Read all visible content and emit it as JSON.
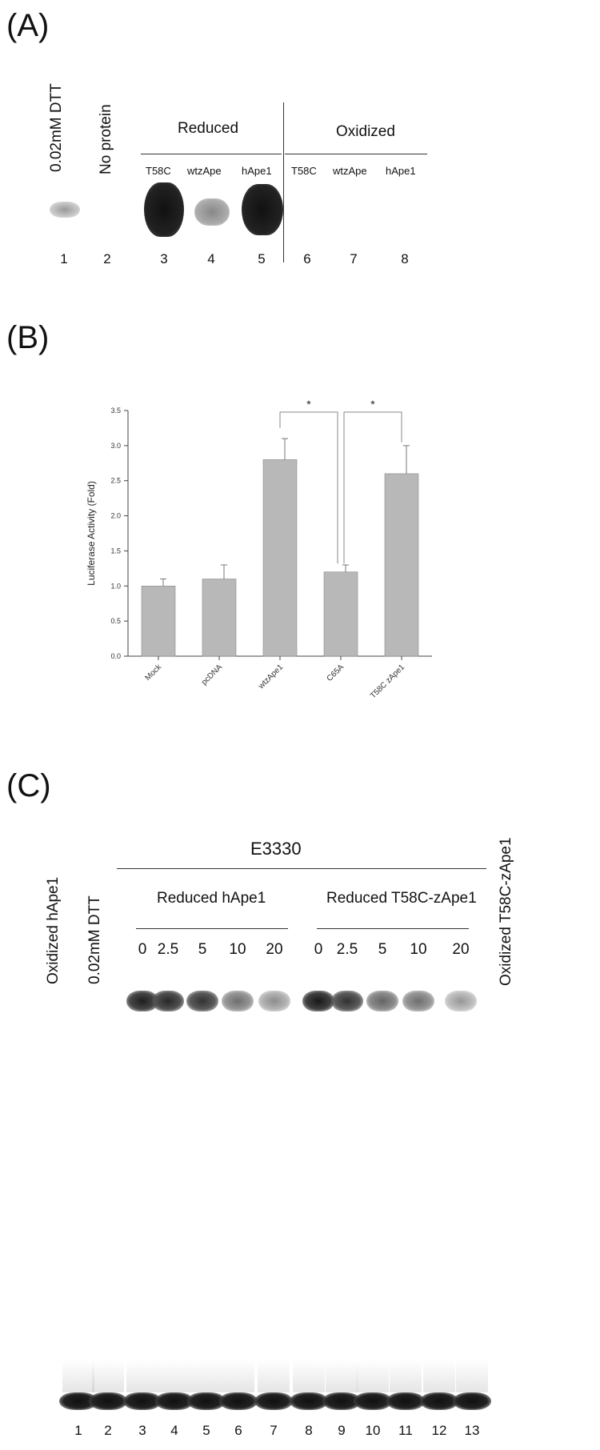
{
  "panelA": {
    "label": "(A)",
    "lane_headers": {
      "dtt": "0.02mM DTT",
      "no_protein": "No protein"
    },
    "groups": {
      "reduced": "Reduced",
      "oxidized": "Oxidized"
    },
    "sub_labels": [
      "T58C",
      "wtzApe",
      "hApe1",
      "T58C",
      "wtzApe",
      "hApe1"
    ],
    "lanes": [
      "1",
      "2",
      "3",
      "4",
      "5",
      "6",
      "7",
      "8"
    ]
  },
  "panelB": {
    "label": "(B)",
    "significance": [
      "*",
      "*"
    ]
  },
  "chart_data": {
    "type": "bar",
    "categories": [
      "Mock",
      "pcDNA",
      "wtzApe1",
      "C65A",
      "T58C zApe1"
    ],
    "values": [
      1.0,
      1.1,
      2.8,
      1.2,
      2.6
    ],
    "errors": [
      0.1,
      0.2,
      0.3,
      0.1,
      0.4
    ],
    "ylabel": "Luciferase Activity (Fold)",
    "ylim": [
      0,
      3.5
    ],
    "yticks": [
      "0.0",
      "0.5",
      "1.0",
      "1.5",
      "2.0",
      "2.5",
      "3.0",
      "3.5"
    ],
    "bar_color": "#b8b8b8"
  },
  "panelC": {
    "label": "(C)",
    "left_headers": {
      "oxidized": "Oxidized hApe1",
      "dtt": "0.02mM DTT"
    },
    "right_header": "Oxidized T58C-zApe1",
    "drug": "E3330",
    "groups": {
      "h": "Reduced hApe1",
      "z": "Reduced T58C-zApe1"
    },
    "concentrations": [
      "0",
      "2.5",
      "5",
      "10",
      "20",
      "0",
      "2.5",
      "5",
      "10",
      "20"
    ],
    "lanes": [
      "1",
      "2",
      "3",
      "4",
      "5",
      "6",
      "7",
      "8",
      "9",
      "10",
      "11",
      "12",
      "13"
    ]
  }
}
